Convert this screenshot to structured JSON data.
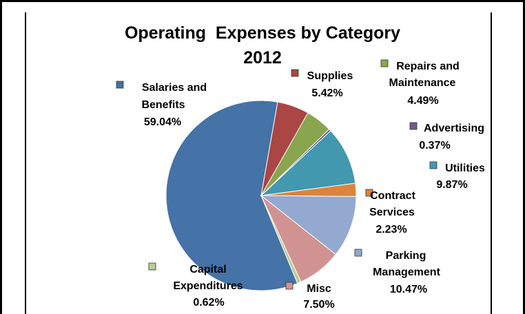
{
  "chart_data": {
    "type": "pie",
    "title_lines": [
      "Operating  Expenses by Category",
      "2012"
    ],
    "slices": [
      {
        "name": "Salaries and Benefits",
        "label_lines": [
          "Salaries and",
          "Benefits"
        ],
        "value": 59.04,
        "value_label": "59.04%",
        "color": "#4572A7"
      },
      {
        "name": "Supplies",
        "label_lines": [
          "Supplies"
        ],
        "value": 5.42,
        "value_label": "5.42%",
        "color": "#AA4643"
      },
      {
        "name": "Repairs and Maintenance",
        "label_lines": [
          "Repairs and",
          "Maintenance"
        ],
        "value": 4.49,
        "value_label": "4.49%",
        "color": "#89A54E"
      },
      {
        "name": "Advertising",
        "label_lines": [
          "Advertising"
        ],
        "value": 0.37,
        "value_label": "0.37%",
        "color": "#71588F"
      },
      {
        "name": "Utilities",
        "label_lines": [
          "Utilities"
        ],
        "value": 9.87,
        "value_label": "9.87%",
        "color": "#4198AF"
      },
      {
        "name": "Contract Services",
        "label_lines": [
          "Contract",
          "Services"
        ],
        "value": 2.23,
        "value_label": "2.23%",
        "color": "#DB843D"
      },
      {
        "name": "Parking Management",
        "label_lines": [
          "Parking",
          "Management"
        ],
        "value": 10.47,
        "value_label": "10.47%",
        "color": "#93A9CF"
      },
      {
        "name": "Misc",
        "label_lines": [
          "Misc"
        ],
        "value": 7.5,
        "value_label": "7.50%",
        "color": "#D19392"
      },
      {
        "name": "Capital Expenditures",
        "label_lines": [
          "Capital",
          "Expenditures"
        ],
        "value": 0.62,
        "value_label": "0.62%",
        "color": "#B9CD96"
      }
    ]
  }
}
